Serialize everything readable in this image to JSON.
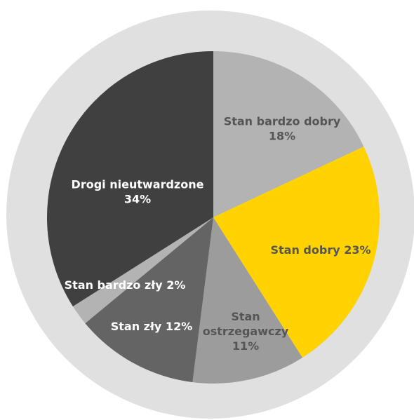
{
  "chart_data": {
    "type": "pie",
    "title": "",
    "legend": "none",
    "ring_color": "#e0e0e0",
    "slices": [
      {
        "label_lines": [
          "Stan bardzo dobry",
          "18%"
        ],
        "value": 18,
        "color": "#b3b3b3",
        "text_color": "#555555"
      },
      {
        "label_lines": [
          "Stan dobry 23%"
        ],
        "value": 23,
        "color": "#ffd200",
        "text_color": "#555555"
      },
      {
        "label_lines": [
          "Stan",
          "ostrzegawczy",
          "11%"
        ],
        "value": 11,
        "color": "#9c9c9c",
        "text_color": "#555555"
      },
      {
        "label_lines": [
          "Stan zły 12%"
        ],
        "value": 12,
        "color": "#646464",
        "text_color": "#ffffff"
      },
      {
        "label_lines": [
          "Stan bardzo zły 2%"
        ],
        "value": 2,
        "color": "#b3b3b3",
        "text_color": "#ffffff"
      },
      {
        "label_lines": [
          "Drogi nieutwardzone",
          "34%"
        ],
        "value": 34,
        "color": "#404040",
        "text_color": "#ffffff"
      }
    ]
  }
}
